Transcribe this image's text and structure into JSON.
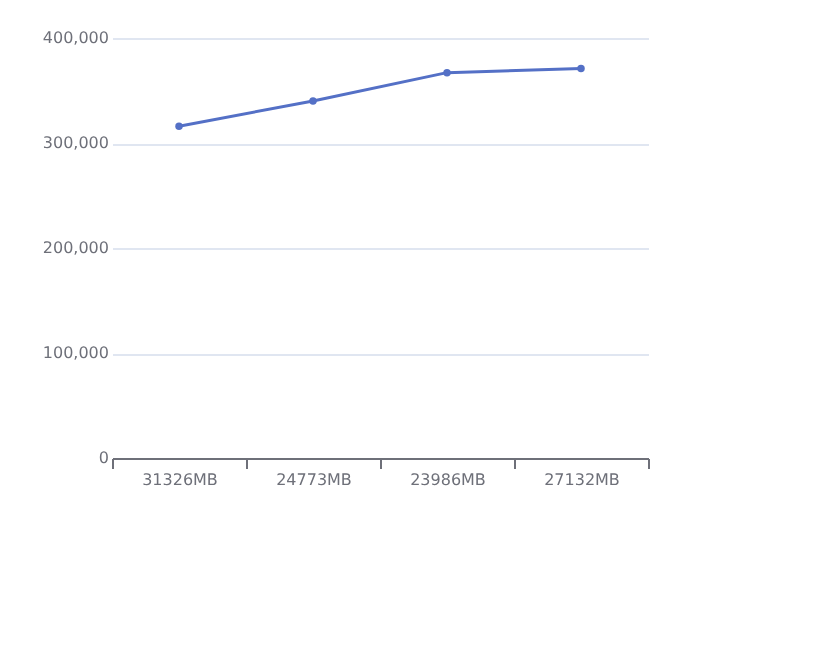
{
  "chart_data": {
    "type": "line",
    "categories": [
      "31326MB",
      "24773MB",
      "23986MB",
      "27132MB"
    ],
    "series": [
      {
        "color": "#5470c6",
        "values": [
          316000,
          340000,
          367000,
          371000
        ]
      }
    ],
    "ylim": [
      0,
      400000
    ],
    "yticks": [
      0,
      {
        "value": 100000,
        "label": "100,000"
      },
      {
        "value": 200000,
        "label": "200,000"
      },
      {
        "value": 300000,
        "label": "300,000"
      },
      {
        "value": 400000,
        "label": "400,000"
      }
    ],
    "grid": "y",
    "marker": "circle",
    "legend": false
  }
}
